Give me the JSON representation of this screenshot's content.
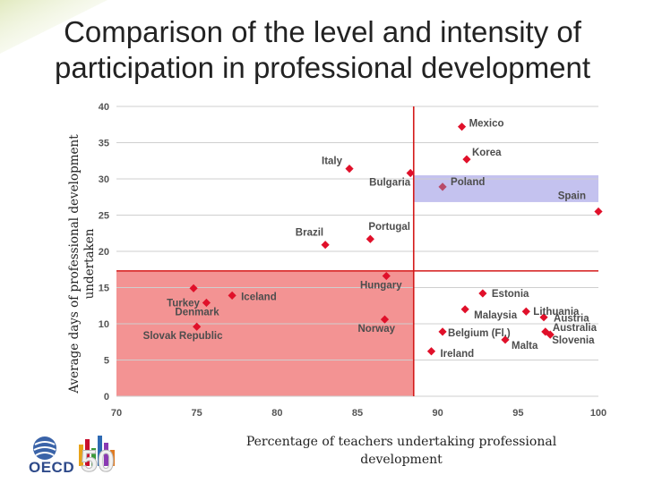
{
  "slide": {
    "title_line1": "Comparison of the level and intensity of",
    "title_line2": "participation in professional development"
  },
  "chart_data": {
    "type": "scatter",
    "title": "Comparison of the level and intensity of participation in professional development",
    "xlabel": "Percentage of teachers undertaking professional development",
    "ylabel": "Average days of professional development undertaken",
    "xlim": [
      70,
      100
    ],
    "ylim": [
      0,
      40
    ],
    "x_ticks": [
      70,
      75,
      80,
      85,
      90,
      95,
      100
    ],
    "y_ticks": [
      0,
      5,
      10,
      15,
      20,
      25,
      30,
      35,
      40
    ],
    "grid": "horizontal",
    "reference_lines": {
      "x": 88.5,
      "y": 17.3
    },
    "highlight_regions": [
      {
        "name": "low-participation-low-intensity",
        "x_range": [
          70,
          88.5
        ],
        "y_range": [
          0,
          17.3
        ],
        "color": "#f07b7b"
      },
      {
        "name": "poland-highlight",
        "x_range": [
          88.5,
          100
        ],
        "y_range": [
          26.8,
          30.5
        ],
        "color": "#b7b4ec"
      }
    ],
    "points": [
      {
        "name": "Mexico",
        "x": 91.5,
        "y": 37.2
      },
      {
        "name": "Korea",
        "x": 91.8,
        "y": 32.7
      },
      {
        "name": "Italy",
        "x": 84.5,
        "y": 31.4
      },
      {
        "name": "Bulgaria",
        "x": 88.3,
        "y": 30.8
      },
      {
        "name": "Poland",
        "x": 90.3,
        "y": 28.9
      },
      {
        "name": "Spain",
        "x": 100.0,
        "y": 25.5
      },
      {
        "name": "Portugal",
        "x": 85.8,
        "y": 21.7
      },
      {
        "name": "Brazil",
        "x": 83.0,
        "y": 20.9
      },
      {
        "name": "Hungary",
        "x": 86.8,
        "y": 16.6
      },
      {
        "name": "Turkey",
        "x": 74.8,
        "y": 14.9
      },
      {
        "name": "Iceland",
        "x": 77.2,
        "y": 13.9
      },
      {
        "name": "Denmark",
        "x": 75.6,
        "y": 12.9
      },
      {
        "name": "Estonia",
        "x": 92.8,
        "y": 14.2
      },
      {
        "name": "Malaysia",
        "x": 91.7,
        "y": 12.0
      },
      {
        "name": "Lithuania",
        "x": 95.5,
        "y": 11.7
      },
      {
        "name": "Austria",
        "x": 96.6,
        "y": 10.9
      },
      {
        "name": "Norway",
        "x": 86.7,
        "y": 10.6
      },
      {
        "name": "Slovak Republic",
        "x": 75.0,
        "y": 9.6
      },
      {
        "name": "Belgium (Fl.)",
        "x": 90.3,
        "y": 8.9
      },
      {
        "name": "Australia",
        "x": 96.7,
        "y": 8.9
      },
      {
        "name": "Slovenia",
        "x": 97.0,
        "y": 8.5
      },
      {
        "name": "Malta",
        "x": 94.2,
        "y": 7.8
      },
      {
        "name": "Ireland",
        "x": 89.6,
        "y": 6.2
      }
    ],
    "marker_color": "#e0102a"
  },
  "logo": {
    "text": "OECD",
    "number": "50"
  }
}
